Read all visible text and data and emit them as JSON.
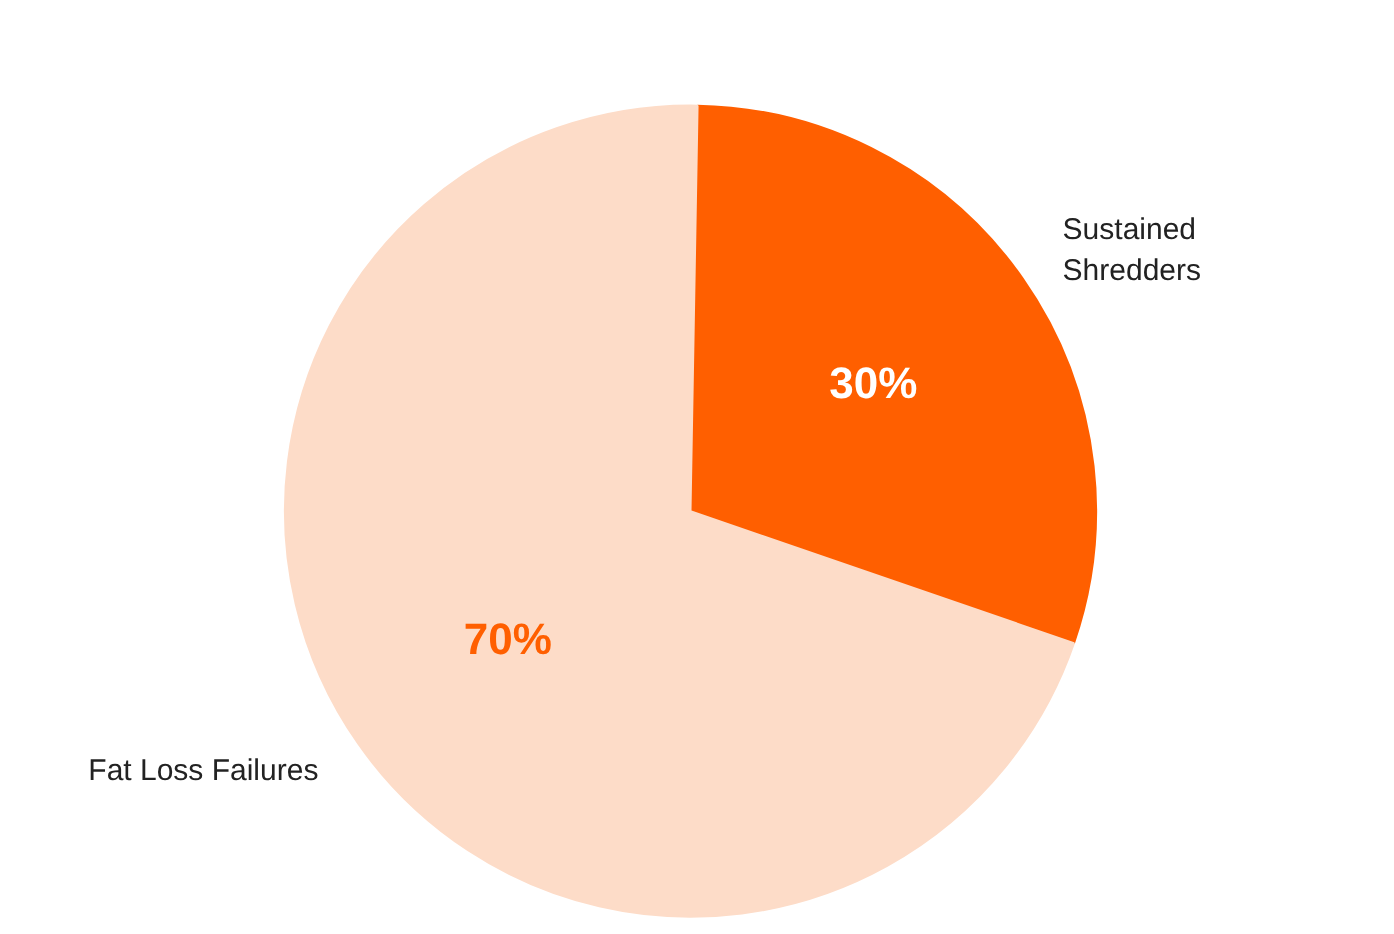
{
  "chart_data": {
    "type": "pie",
    "categories": [
      "Sustained Shredders",
      "Fat Loss Failures"
    ],
    "values": [
      30,
      70
    ],
    "colors": [
      "#ff5f00",
      "#fddcc8"
    ],
    "value_labels": [
      "30%",
      "70%"
    ]
  }
}
